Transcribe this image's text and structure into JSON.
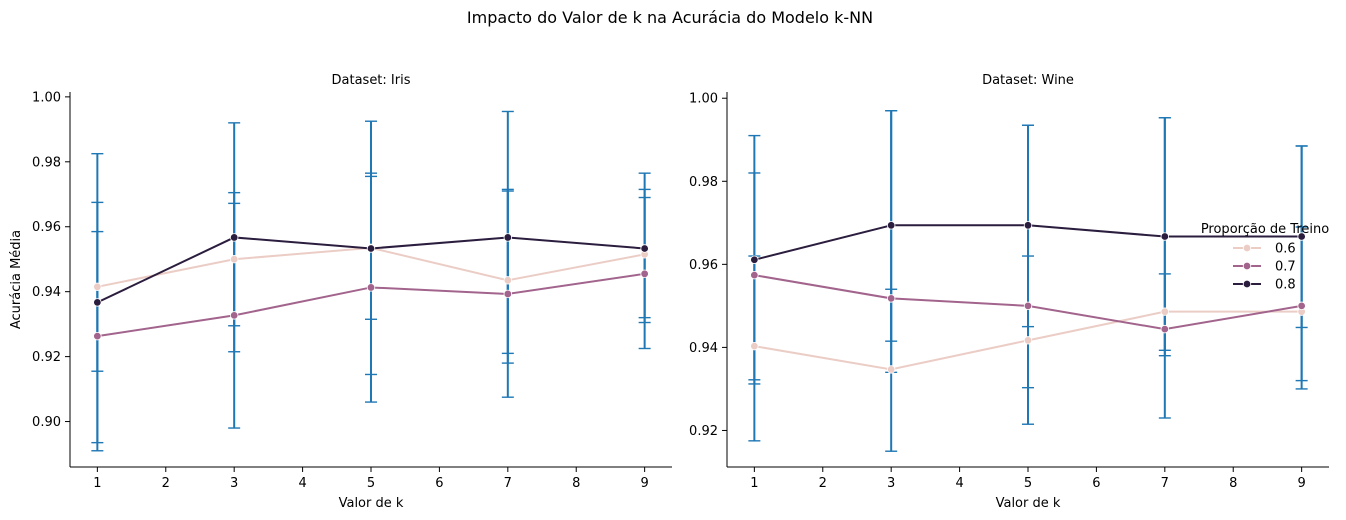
{
  "figure": {
    "suptitle": "Impacto do Valor de k na Acurácia do Modelo k-NN",
    "legend": {
      "title": "Proporção de Treino",
      "placement": "right",
      "entries": [
        "0.6",
        "0.7",
        "0.8"
      ]
    },
    "colors": {
      "0.6": "#ebcdc6",
      "0.7": "#a2648c",
      "0.8": "#2b1d3e",
      "errorbar": "#1f77b4"
    }
  },
  "chart_data": [
    {
      "type": "line",
      "title": "Dataset: Iris",
      "xlabel": "Valor de k",
      "ylabel": "Acurácia Média",
      "xlim": [
        0.6,
        9.4
      ],
      "ylim": [
        0.886,
        1.0015
      ],
      "xticks": [
        "1",
        "2",
        "3",
        "4",
        "5",
        "6",
        "7",
        "8",
        "9"
      ],
      "yticks": [
        "0.90",
        "0.92",
        "0.94",
        "0.96",
        "0.98",
        "1.00"
      ],
      "x": [
        1,
        3,
        5,
        7,
        9
      ],
      "series": [
        {
          "name": "0.6",
          "values": [
            0.9415,
            0.95,
            0.9535,
            0.9435,
            0.9515
          ],
          "err_low": [
            0.9155,
            0.9295,
            0.9145,
            0.918,
            0.9305
          ],
          "err_high": [
            0.9675,
            0.9705,
            0.9755,
            0.9715,
            0.9715
          ]
        },
        {
          "name": "0.7",
          "values": [
            0.9263,
            0.9327,
            0.9413,
            0.9393,
            0.9455
          ],
          "err_low": [
            0.8935,
            0.898,
            0.906,
            0.9075,
            0.9225
          ],
          "err_high": [
            0.9585,
            0.9672,
            0.9765,
            0.971,
            0.969
          ]
        },
        {
          "name": "0.8",
          "values": [
            0.9367,
            0.9567,
            0.9533,
            0.9567,
            0.9533
          ],
          "err_low": [
            0.891,
            0.9215,
            0.9315,
            0.921,
            0.932
          ],
          "err_high": [
            0.9825,
            0.992,
            0.9925,
            0.9955,
            0.9765
          ]
        }
      ]
    },
    {
      "type": "line",
      "title": "Dataset: Wine",
      "xlabel": "Valor de k",
      "ylabel": "",
      "xlim": [
        0.6,
        9.4
      ],
      "ylim": [
        0.9112,
        1.0015
      ],
      "xticks": [
        "1",
        "2",
        "3",
        "4",
        "5",
        "6",
        "7",
        "8",
        "9"
      ],
      "yticks": [
        "0.92",
        "0.94",
        "0.96",
        "0.98",
        "1.00"
      ],
      "x": [
        1,
        3,
        5,
        7,
        9
      ],
      "series": [
        {
          "name": "0.6",
          "values": [
            0.9403,
            0.9347,
            0.9417,
            0.9486,
            0.9486
          ],
          "err_low": [
            0.9312,
            0.934,
            0.9303,
            0.938,
            0.93
          ],
          "err_high": [
            0.962,
            0.954,
            0.962,
            0.9577,
            0.969
          ]
        },
        {
          "name": "0.7",
          "values": [
            0.9574,
            0.9518,
            0.95,
            0.9444,
            0.95
          ],
          "err_low": [
            0.9175,
            0.915,
            0.9215,
            0.923,
            0.932
          ],
          "err_high": [
            0.991,
            0.997,
            0.9935,
            0.9953,
            0.9885
          ]
        },
        {
          "name": "0.8",
          "values": [
            0.9611,
            0.9694,
            0.9694,
            0.9667,
            0.9667
          ],
          "err_low": [
            0.9322,
            0.9415,
            0.945,
            0.9393,
            0.9448
          ],
          "err_high": [
            0.982,
            0.997,
            0.9935,
            0.9953,
            0.9885
          ]
        }
      ]
    }
  ]
}
